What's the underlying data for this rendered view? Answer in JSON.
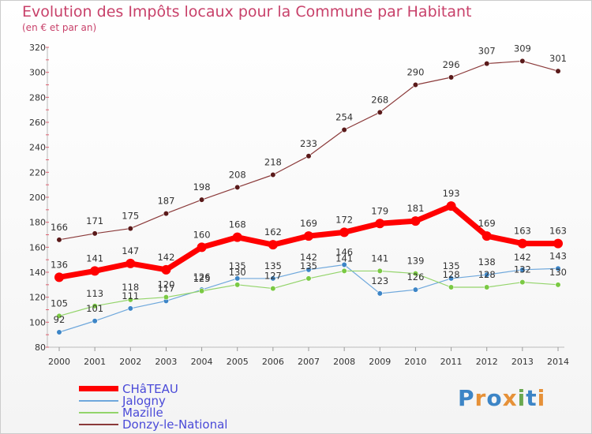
{
  "header": {
    "title": "Evolution des Impôts locaux pour la Commune par Habitant",
    "subtitle": "(en € et par an)"
  },
  "logo": {
    "text": "Proxiti"
  },
  "chart_data": {
    "type": "line",
    "title": "Evolution des Impôts locaux pour la Commune par Habitant",
    "subtitle": "(en € et par an)",
    "x": [
      "2000",
      "2001",
      "2002",
      "2003",
      "2004",
      "2005",
      "2006",
      "2007",
      "2008",
      "2009",
      "2010",
      "2011",
      "2012",
      "2013",
      "2014"
    ],
    "ylim": [
      80,
      320
    ],
    "yticks": [
      80,
      100,
      120,
      140,
      160,
      180,
      200,
      220,
      240,
      260,
      280,
      300,
      320
    ],
    "grid": false,
    "legend_position": "bottom-left",
    "series": [
      {
        "name": "CHâTEAU",
        "color": "#ff0000",
        "marker_color": "#ff0000",
        "emphasis": true,
        "values": [
          136,
          141,
          147,
          142,
          160,
          168,
          162,
          169,
          172,
          179,
          181,
          193,
          169,
          163,
          163
        ]
      },
      {
        "name": "Jalogny",
        "color": "#6fa8dc",
        "marker_color": "#3d85c6",
        "emphasis": false,
        "values": [
          92,
          101,
          111,
          117,
          126,
          135,
          135,
          142,
          146,
          123,
          126,
          135,
          138,
          142,
          143
        ]
      },
      {
        "name": "Mazille",
        "color": "#93d46a",
        "marker_color": "#7ac943",
        "emphasis": false,
        "values": [
          105,
          113,
          118,
          120,
          125,
          130,
          127,
          135,
          141,
          141,
          139,
          128,
          128,
          132,
          130
        ]
      },
      {
        "name": "Donzy-le-National",
        "color": "#8b3a3a",
        "marker_color": "#5a1a1a",
        "emphasis": false,
        "values": [
          166,
          171,
          175,
          187,
          198,
          208,
          218,
          233,
          254,
          268,
          290,
          296,
          307,
          309,
          301
        ]
      }
    ]
  }
}
